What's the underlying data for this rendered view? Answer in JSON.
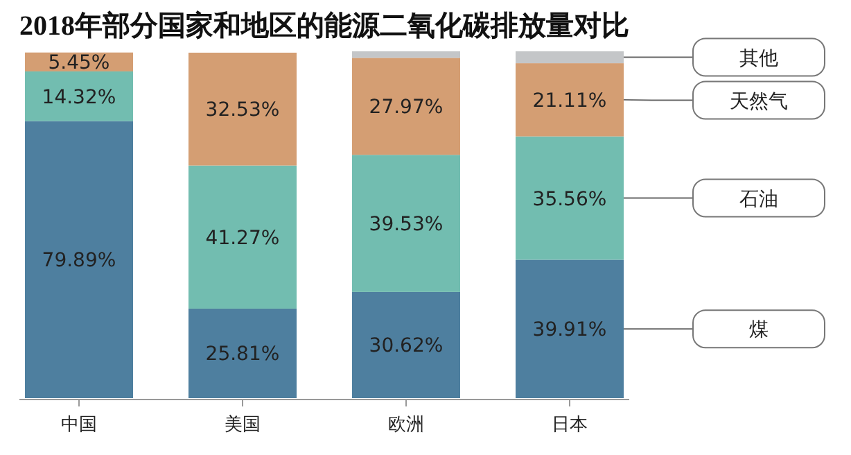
{
  "chart_data": {
    "type": "bar",
    "stacked": true,
    "title": "2018年部分国家和地区的能源二氧化碳排放量对比",
    "categories": [
      "中国",
      "美国",
      "欧洲",
      "日本"
    ],
    "legend": "right",
    "series": [
      {
        "name": "煤",
        "color": "#4e7f9f",
        "values": [
          79.89,
          25.81,
          30.62,
          39.91
        ],
        "value_labels": [
          "79.89%",
          "25.81%",
          "30.62%",
          "39.91%"
        ]
      },
      {
        "name": "石油",
        "color": "#72bdb0",
        "values": [
          14.32,
          41.27,
          39.53,
          35.56
        ],
        "value_labels": [
          "14.32%",
          "41.27%",
          "39.53%",
          "35.56%"
        ]
      },
      {
        "name": "天然气",
        "color": "#d49e73",
        "values": [
          5.45,
          32.53,
          27.97,
          21.11
        ],
        "value_labels": [
          "5.45%",
          "32.53%",
          "27.97%",
          "21.11%"
        ]
      },
      {
        "name": "其他",
        "color": "#c4c6c8",
        "values": [
          null,
          null,
          1.88,
          3.42
        ],
        "value_labels": [
          null,
          null,
          null,
          null
        ]
      }
    ]
  }
}
